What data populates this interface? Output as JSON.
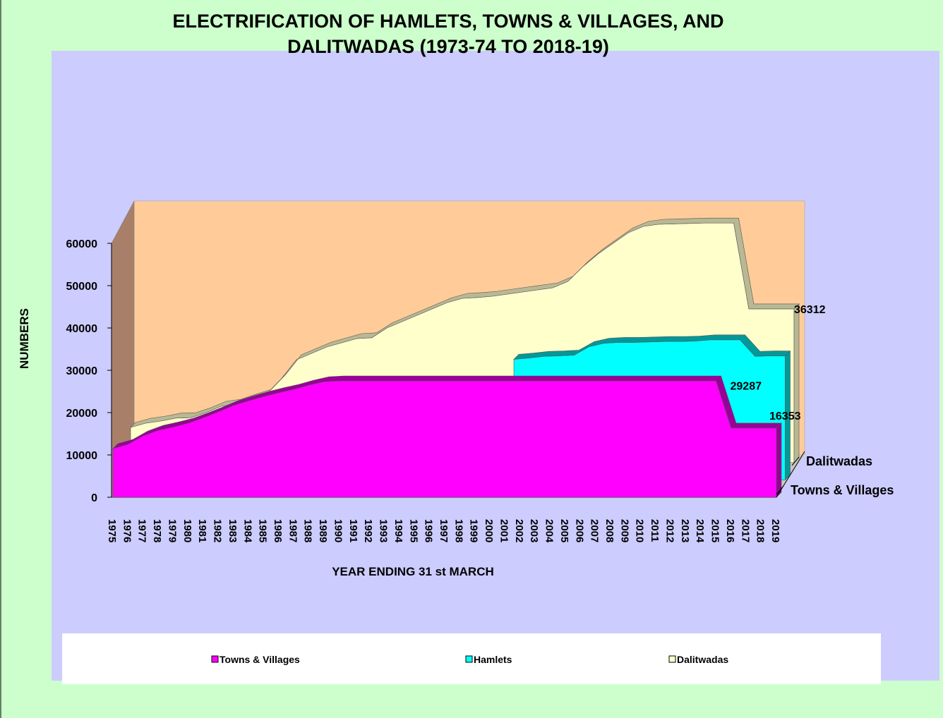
{
  "chart_data": {
    "type": "area3d",
    "title": "ELECTRIFICATION OF HAMLETS, TOWNS & VILLAGES, AND DALITWADAS (1973-74 TO 2018-19)",
    "y_label": "NUMBERS",
    "x_label": "YEAR ENDING 31 st MARCH",
    "categories": [
      "1975",
      "1976",
      "1977",
      "1978",
      "1979",
      "1980",
      "1981",
      "1982",
      "1983",
      "1984",
      "1985",
      "1986",
      "1987",
      "1988",
      "1989",
      "1990",
      "1991",
      "1992",
      "1993",
      "1994",
      "1995",
      "1996",
      "1997",
      "1998",
      "1999",
      "2000",
      "2001",
      "2002",
      "2003",
      "2004",
      "2005",
      "2006",
      "2007",
      "2008",
      "2009",
      "2010",
      "2011",
      "2012",
      "2013",
      "2014",
      "2015",
      "2016",
      "2017",
      "2018",
      "2019"
    ],
    "series": [
      {
        "name": "Towns & Villages",
        "color": "#ff00ff",
        "rim": "#990099",
        "values": [
          11500,
          12500,
          14500,
          15800,
          16600,
          17500,
          18800,
          20200,
          21700,
          22800,
          23800,
          24700,
          25500,
          26500,
          27300,
          27500,
          27500,
          27500,
          27500,
          27500,
          27500,
          27500,
          27500,
          27500,
          27500,
          27500,
          27500,
          27500,
          27500,
          27500,
          27500,
          27500,
          27500,
          27500,
          27500,
          27500,
          27500,
          27500,
          27500,
          27500,
          27500,
          16353,
          16353,
          16353,
          16353
        ]
      },
      {
        "name": "Hamlets",
        "color": "#00ffff",
        "rim": "#009999",
        "values": [
          null,
          null,
          null,
          null,
          null,
          null,
          null,
          null,
          null,
          null,
          null,
          null,
          null,
          null,
          null,
          null,
          null,
          null,
          null,
          null,
          null,
          null,
          null,
          null,
          null,
          null,
          28500,
          28800,
          29200,
          29300,
          29500,
          31500,
          32300,
          32500,
          32500,
          32600,
          32700,
          32700,
          32800,
          33100,
          33100,
          33100,
          29200,
          29300,
          29287
        ]
      },
      {
        "name": "Dalitwadas",
        "color": "#ffffcc",
        "rim": "#b8b894",
        "values": [
          8300,
          9300,
          9800,
          10500,
          10600,
          11800,
          13300,
          13800,
          15000,
          16100,
          19800,
          24300,
          25800,
          27300,
          28300,
          29300,
          29500,
          31800,
          33300,
          34800,
          36300,
          37800,
          38800,
          39000,
          39300,
          39800,
          40300,
          40800,
          41300,
          42800,
          46300,
          49300,
          51800,
          54300,
          55800,
          56300,
          56400,
          56500,
          56600,
          56600,
          56600,
          36312,
          36312,
          36312,
          36312
        ]
      }
    ],
    "value_label_points": [
      0,
      1,
      2
    ],
    "ylim": [
      0,
      70000
    ],
    "yticks": [
      0,
      10000,
      20000,
      30000,
      40000,
      50000,
      60000
    ],
    "depth_labels": [
      2,
      0
    ],
    "legend": "bottom"
  }
}
